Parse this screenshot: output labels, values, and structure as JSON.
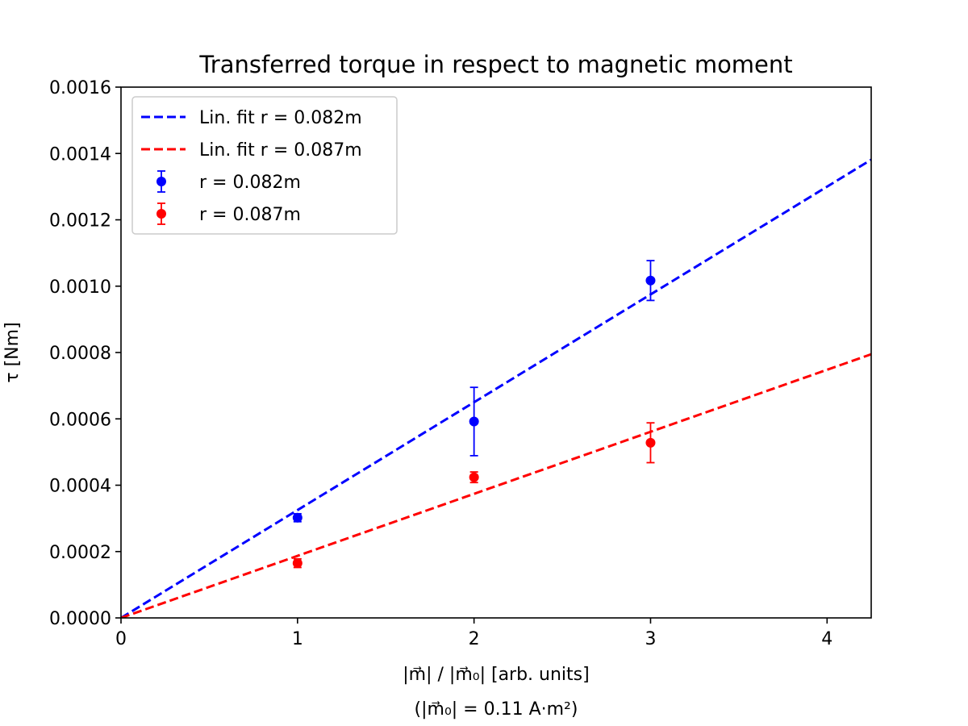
{
  "chart_data": {
    "type": "scatter",
    "title": "Transferred torque in respect to magnetic moment",
    "xlabel": "|m⃗| / |m⃗₀| [arb. units]",
    "xlabel_line2": "(|m⃗₀| = 0.11 A·m²)",
    "ylabel": "τ [Nm]",
    "xlim": [
      0,
      4.25
    ],
    "ylim": [
      0,
      0.0016
    ],
    "x_ticks": [
      "0",
      "1",
      "2",
      "3",
      "4"
    ],
    "y_ticks": [
      "0.0000",
      "0.0002",
      "0.0004",
      "0.0006",
      "0.0008",
      "0.0010",
      "0.0012",
      "0.0014",
      "0.0016"
    ],
    "grid": false,
    "legend_position": "upper-left",
    "series": [
      {
        "name": "r = 0.082m",
        "color": "#0000ff",
        "x": [
          1,
          2,
          3
        ],
        "y": [
          0.000302,
          0.000592,
          0.001017
        ],
        "yerr": [
          1.2e-05,
          0.000103,
          6e-05
        ]
      },
      {
        "name": "r = 0.087m",
        "color": "#ff0000",
        "x": [
          1,
          2,
          3
        ],
        "y": [
          0.000165,
          0.000424,
          0.000528
        ],
        "yerr": [
          1.3e-05,
          1.6e-05,
          6e-05
        ]
      }
    ],
    "fits": [
      {
        "name": "Lin. fit r = 0.082m",
        "color": "#0000ff",
        "slope": 0.000325,
        "intercept": 0,
        "style": "dashed"
      },
      {
        "name": "Lin. fit r = 0.087m",
        "color": "#ff0000",
        "slope": 0.000187,
        "intercept": 0,
        "style": "dashed"
      }
    ]
  }
}
